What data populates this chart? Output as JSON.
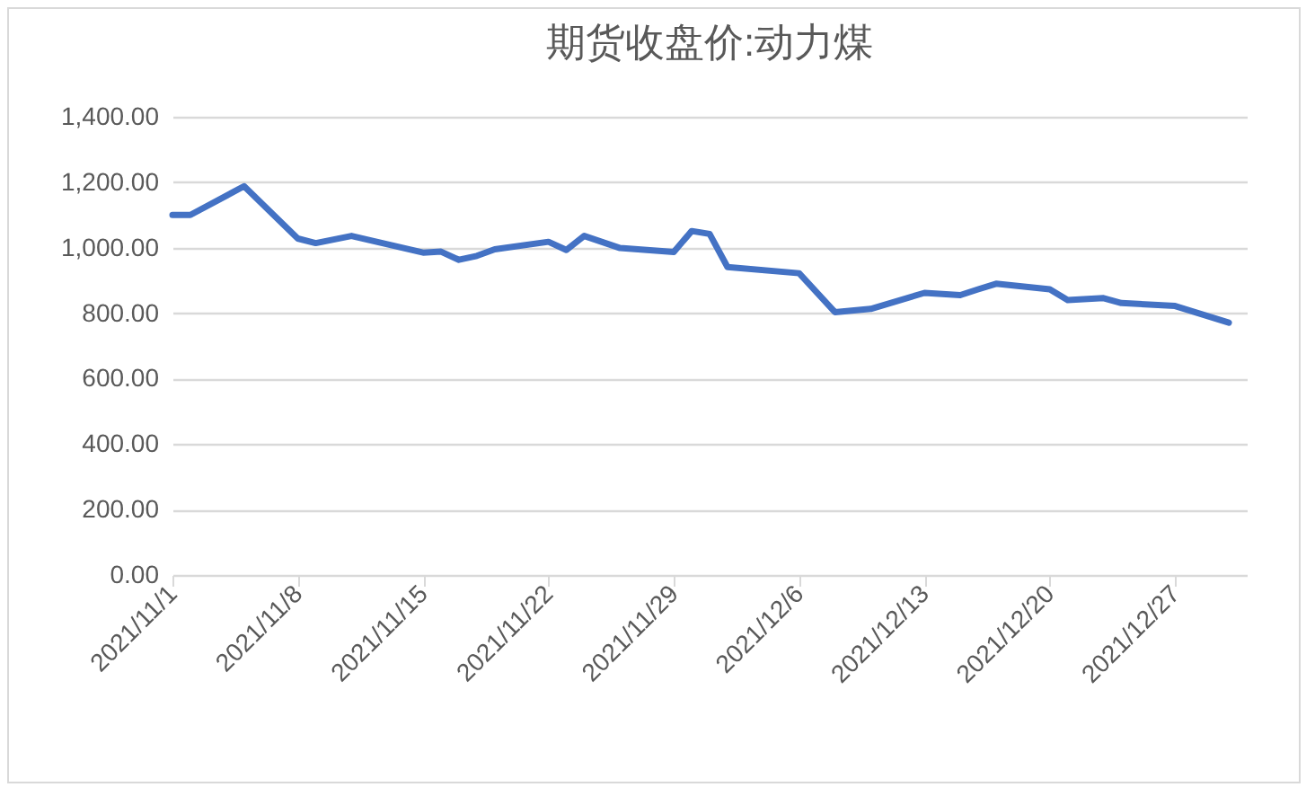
{
  "chart_data": {
    "type": "line",
    "title": "期货收盘价:动力煤",
    "x": [
      "2021-11-01",
      "2021-11-02",
      "2021-11-05",
      "2021-11-08",
      "2021-11-09",
      "2021-11-11",
      "2021-11-15",
      "2021-11-16",
      "2021-11-17",
      "2021-11-18",
      "2021-11-19",
      "2021-11-22",
      "2021-11-23",
      "2021-11-24",
      "2021-11-26",
      "2021-11-29",
      "2021-11-30",
      "2021-12-01",
      "2021-12-02",
      "2021-12-06",
      "2021-12-08",
      "2021-12-10",
      "2021-12-13",
      "2021-12-15",
      "2021-12-16",
      "2021-12-17",
      "2021-12-20",
      "2021-12-21",
      "2021-12-23",
      "2021-12-24",
      "2021-12-27",
      "2021-12-30"
    ],
    "series": [
      {
        "color": "#4472c4",
        "values": [
          1100,
          1100,
          1188,
          1028,
          1014,
          1036,
          985,
          988,
          963,
          975,
          995,
          1018,
          993,
          1036,
          999,
          987,
          1051,
          1042,
          941,
          922,
          803,
          813,
          862,
          855,
          873,
          890,
          873,
          840,
          846,
          831,
          822,
          771
        ]
      }
    ],
    "xlim": [
      "2021-11-01",
      "2021-12-31"
    ],
    "xticks": [
      {
        "value": "2021-11-01",
        "label": "2021/11/1"
      },
      {
        "value": "2021-11-08",
        "label": "2021/11/8"
      },
      {
        "value": "2021-11-15",
        "label": "2021/11/15"
      },
      {
        "value": "2021-11-22",
        "label": "2021/11/22"
      },
      {
        "value": "2021-11-29",
        "label": "2021/11/29"
      },
      {
        "value": "2021-12-06",
        "label": "2021/12/6"
      },
      {
        "value": "2021-12-13",
        "label": "2021/12/13"
      },
      {
        "value": "2021-12-20",
        "label": "2021/12/20"
      },
      {
        "value": "2021-12-27",
        "label": "2021/12/27"
      }
    ],
    "ylim": [
      0,
      1400
    ],
    "yticks": [
      {
        "value": 0,
        "label": "0.00"
      },
      {
        "value": 200,
        "label": "200.00"
      },
      {
        "value": 400,
        "label": "400.00"
      },
      {
        "value": 600,
        "label": "600.00"
      },
      {
        "value": 800,
        "label": "800.00"
      },
      {
        "value": 1000,
        "label": "1,000.00"
      },
      {
        "value": 1200,
        "label": "1,200.00"
      },
      {
        "value": 1400,
        "label": "1,400.00"
      }
    ],
    "grid": "y",
    "marker": "none",
    "line_style": "solid"
  }
}
